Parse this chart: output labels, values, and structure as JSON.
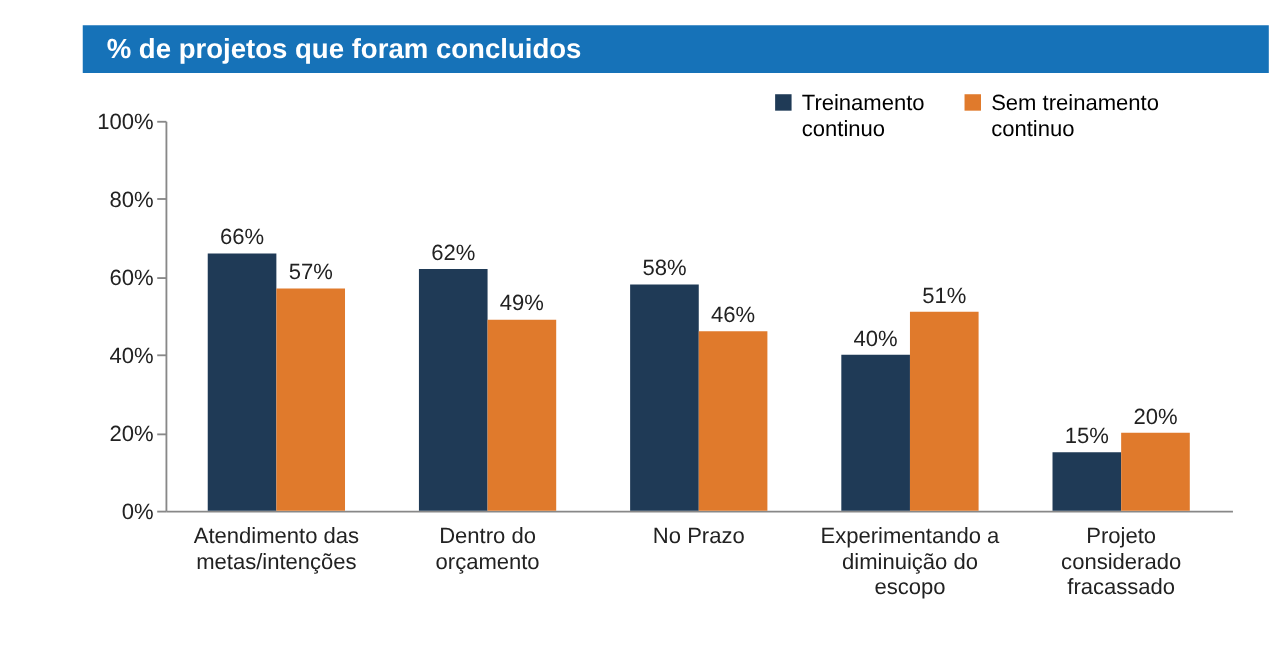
{
  "chart_data": {
    "type": "bar",
    "title": "% de projetos que foram concluidos",
    "categories": [
      "Atendimento das metas/intenções",
      "Dentro do orçamento",
      "No Prazo",
      "Experimentando a diminuição do escopo",
      "Projeto considerado fracassado"
    ],
    "series": [
      {
        "name": "Treinamento continuo",
        "color": "#1f3a56",
        "values": [
          66,
          62,
          58,
          40,
          15
        ],
        "value_labels": [
          "66%",
          "62%",
          "58%",
          "40%",
          "15%"
        ]
      },
      {
        "name": "Sem treinamento continuo",
        "color": "#e07a2c",
        "values": [
          57,
          49,
          46,
          51,
          20
        ],
        "value_labels": [
          "57%",
          "49%",
          "46%",
          "51%",
          "20%"
        ]
      }
    ],
    "ylim": [
      0,
      100
    ],
    "yticks": [
      {
        "value": 0,
        "label": "0%"
      },
      {
        "value": 20,
        "label": "20%"
      },
      {
        "value": 40,
        "label": "40%"
      },
      {
        "value": 60,
        "label": "60%"
      },
      {
        "value": 80,
        "label": "80%"
      },
      {
        "value": 100,
        "label": "100%"
      }
    ],
    "grid": false,
    "legend": "top right"
  }
}
